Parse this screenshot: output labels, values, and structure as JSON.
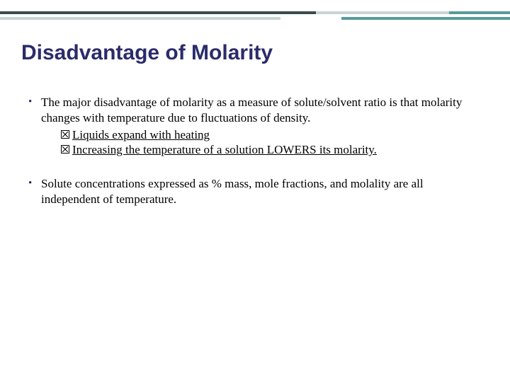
{
  "colors": {
    "title": "#2b2b6b",
    "border_dark": "#3a4a4f",
    "border_light": "#c9d4d4",
    "border_teal": "#5a9a9a",
    "background": "#ffffff",
    "body_text": "#000000"
  },
  "typography": {
    "title_font": "Trebuchet MS",
    "title_size_pt": 22,
    "title_weight": "bold",
    "body_font": "Georgia",
    "body_size_pt": 13
  },
  "title": "Disadvantage of Molarity",
  "bullets": [
    {
      "text": "The major disadvantage of molarity as a measure of solute/solvent ratio is that molarity changes with temperature due to fluctuations of density.",
      "sub": [
        {
          "text": "Liquids expand with heating",
          "underlined": true
        },
        {
          "text": "Increasing the temperature of a solution LOWERS its molarity.",
          "underlined": true
        }
      ]
    },
    {
      "text": "Solute concentrations expressed as % mass, mole fractions, and molality are all independent of temperature.",
      "sub": []
    }
  ]
}
